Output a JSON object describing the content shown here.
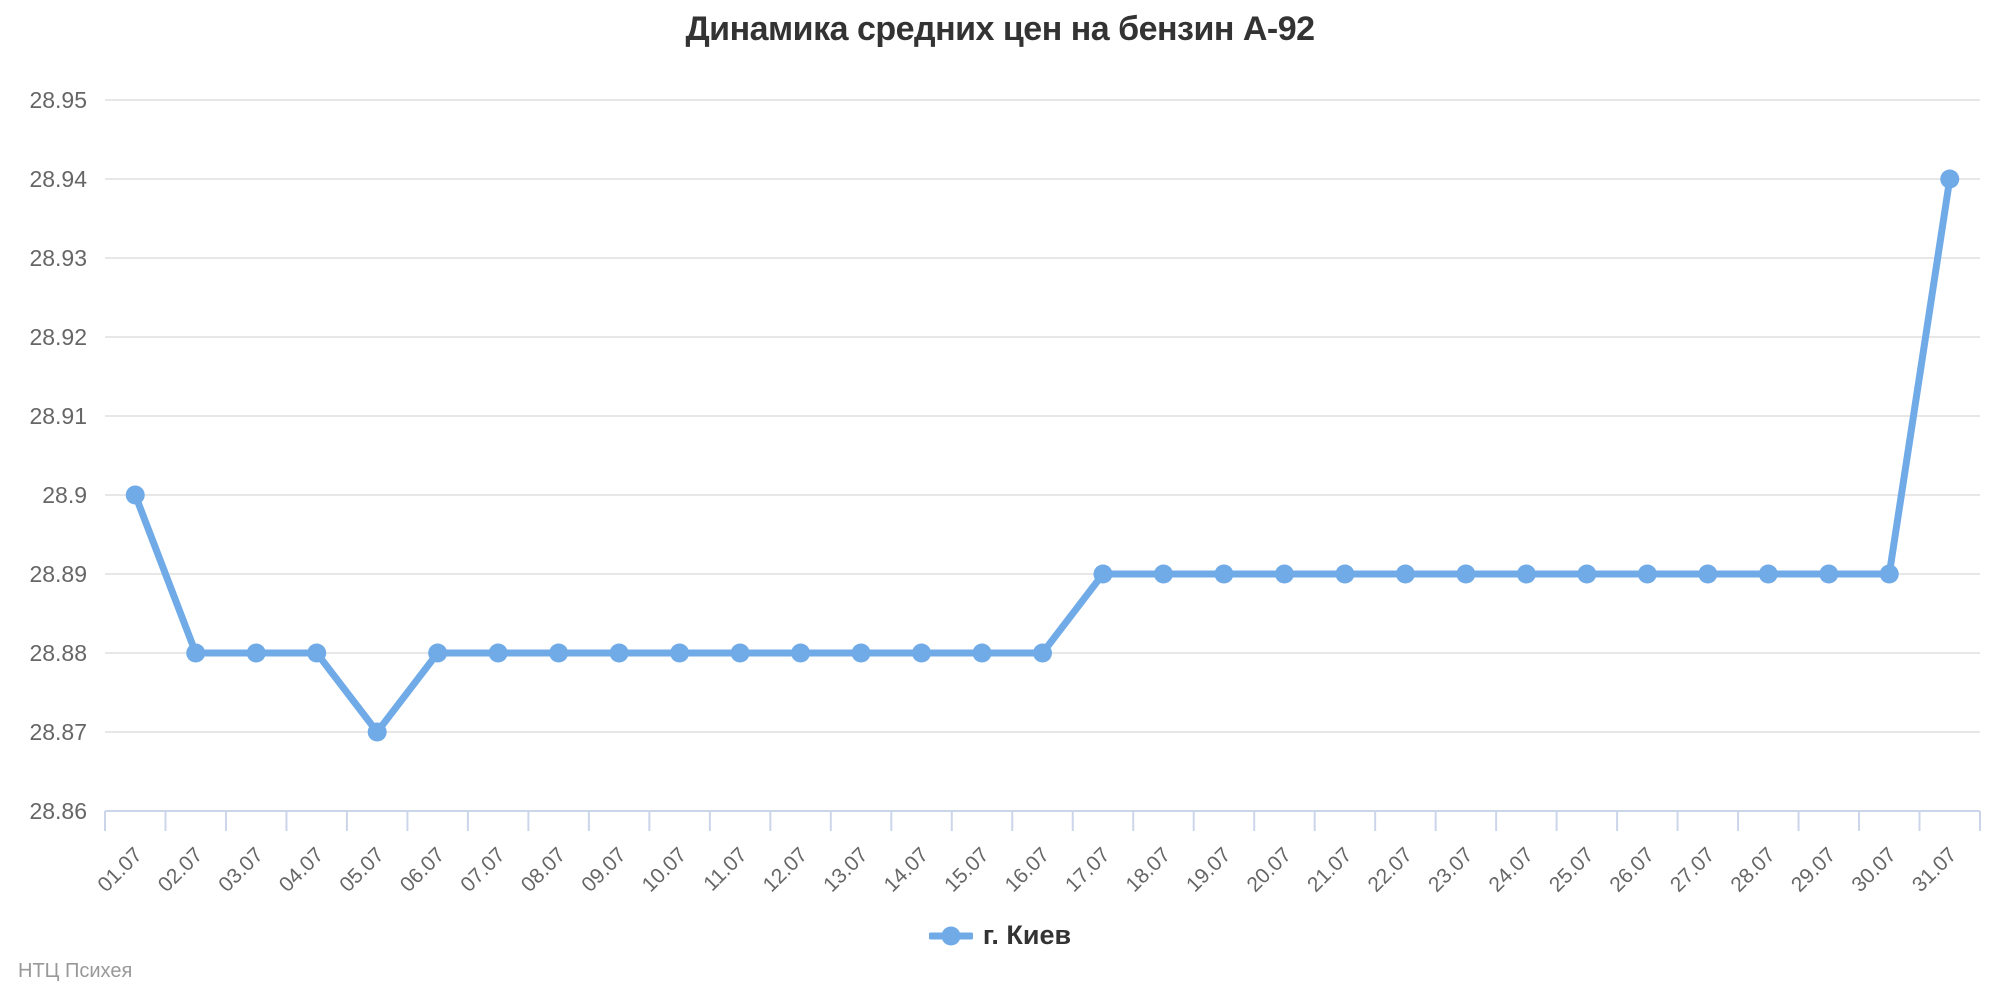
{
  "chart": {
    "credit": "НТЦ Психея",
    "colors": {
      "series": "#70abe8",
      "grid": "#e7e7e7",
      "axis": "#ccd6eb",
      "title_color": "#333333",
      "label_color": "#666666",
      "credit_color": "#999999"
    }
  },
  "chart_data": {
    "type": "line",
    "title": "Динамика средних цен на бензин А-92",
    "xlabel": "",
    "ylabel": "",
    "ylim": [
      28.86,
      28.95
    ],
    "yticks": [
      28.86,
      28.87,
      28.88,
      28.89,
      28.9,
      28.91,
      28.92,
      28.93,
      28.94,
      28.95
    ],
    "ytick_labels": [
      "28.86",
      "28.87",
      "28.88",
      "28.89",
      "28.9",
      "28.91",
      "28.92",
      "28.93",
      "28.94",
      "28.95"
    ],
    "grid": true,
    "legend_position": "bottom",
    "categories": [
      "01.07",
      "02.07",
      "03.07",
      "04.07",
      "05.07",
      "06.07",
      "07.07",
      "08.07",
      "09.07",
      "10.07",
      "11.07",
      "12.07",
      "13.07",
      "14.07",
      "15.07",
      "16.07",
      "17.07",
      "18.07",
      "19.07",
      "20.07",
      "21.07",
      "22.07",
      "23.07",
      "24.07",
      "25.07",
      "26.07",
      "27.07",
      "28.07",
      "29.07",
      "30.07",
      "31.07"
    ],
    "series": [
      {
        "name": "г. Киев",
        "color": "#70abe8",
        "values": [
          28.9,
          28.88,
          28.88,
          28.88,
          28.87,
          28.88,
          28.88,
          28.88,
          28.88,
          28.88,
          28.88,
          28.88,
          28.88,
          28.88,
          28.88,
          28.88,
          28.89,
          28.89,
          28.89,
          28.89,
          28.89,
          28.89,
          28.89,
          28.89,
          28.89,
          28.89,
          28.89,
          28.89,
          28.89,
          28.89,
          28.94
        ]
      }
    ]
  }
}
